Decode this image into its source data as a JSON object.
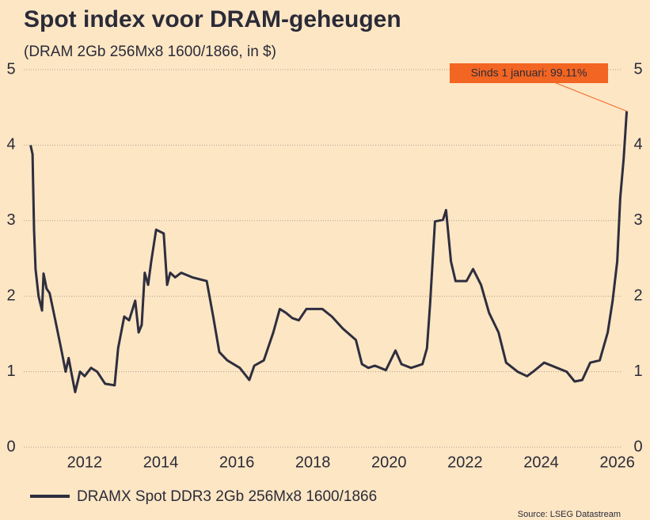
{
  "chart_data": {
    "type": "line",
    "title": "Spot index voor DRAM-geheugen",
    "subtitle": "(DRAM 2Gb 256Mx8 1600/1866, in $)",
    "annotation": "Sinds 1 januari: 99.11%",
    "source": "Source: LSEG Datastream",
    "xlim": [
      2010.4,
      2026.3
    ],
    "xticks": [
      2012,
      2014,
      2016,
      2018,
      2020,
      2022,
      2024,
      2026
    ],
    "ylim": [
      0,
      5
    ],
    "yticks": [
      0,
      1,
      2,
      3,
      4,
      5
    ],
    "grid": true,
    "series": [
      {
        "name": "DRAMX Spot DDR3 2Gb 256Mx8 1600/1866",
        "color": "#2e2e3e",
        "x": [
          2010.58,
          2010.63,
          2010.67,
          2010.71,
          2010.79,
          2010.88,
          2010.92,
          2011.0,
          2011.08,
          2011.21,
          2011.38,
          2011.5,
          2011.58,
          2011.67,
          2011.75,
          2011.88,
          2012.0,
          2012.17,
          2012.33,
          2012.54,
          2012.79,
          2012.88,
          2013.04,
          2013.17,
          2013.33,
          2013.42,
          2013.5,
          2013.58,
          2013.67,
          2013.75,
          2013.88,
          2014.08,
          2014.17,
          2014.25,
          2014.38,
          2014.54,
          2014.83,
          2015.21,
          2015.38,
          2015.54,
          2015.75,
          2016.08,
          2016.33,
          2016.46,
          2016.71,
          2016.96,
          2017.13,
          2017.29,
          2017.46,
          2017.63,
          2017.83,
          2018.25,
          2018.5,
          2018.79,
          2019.13,
          2019.29,
          2019.46,
          2019.63,
          2019.92,
          2020.17,
          2020.33,
          2020.58,
          2020.88,
          2021.0,
          2021.08,
          2021.21,
          2021.42,
          2021.5,
          2021.63,
          2021.75,
          2022.04,
          2022.21,
          2022.42,
          2022.63,
          2022.88,
          2023.08,
          2023.38,
          2023.63,
          2023.79,
          2024.08,
          2024.42,
          2024.67,
          2024.88,
          2025.08,
          2025.29,
          2025.54,
          2025.75,
          2025.88,
          2026.0,
          2026.08,
          2026.17,
          2026.25
        ],
        "values": [
          4.0,
          3.88,
          2.88,
          2.36,
          2.0,
          1.81,
          2.3,
          2.1,
          2.04,
          1.73,
          1.31,
          1.0,
          1.18,
          0.94,
          0.73,
          1.0,
          0.94,
          1.05,
          1.0,
          0.84,
          0.82,
          1.31,
          1.73,
          1.68,
          1.94,
          1.52,
          1.62,
          2.31,
          2.15,
          2.46,
          2.88,
          2.83,
          2.15,
          2.31,
          2.25,
          2.31,
          2.25,
          2.2,
          1.73,
          1.26,
          1.15,
          1.05,
          0.89,
          1.08,
          1.15,
          1.52,
          1.83,
          1.78,
          1.71,
          1.68,
          1.83,
          1.83,
          1.73,
          1.57,
          1.42,
          1.1,
          1.05,
          1.08,
          1.02,
          1.28,
          1.1,
          1.05,
          1.1,
          1.31,
          1.89,
          2.99,
          3.01,
          3.14,
          2.46,
          2.2,
          2.2,
          2.36,
          2.15,
          1.78,
          1.52,
          1.12,
          1.0,
          0.94,
          1.0,
          1.12,
          1.05,
          1.0,
          0.87,
          0.89,
          1.12,
          1.15,
          1.52,
          1.94,
          2.46,
          3.3,
          3.83,
          4.45
        ]
      }
    ]
  }
}
